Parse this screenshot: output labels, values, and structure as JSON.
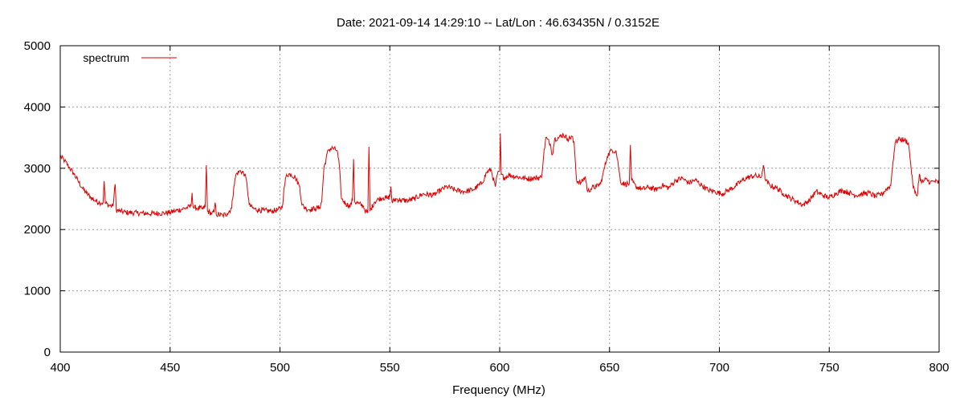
{
  "chart_data": {
    "type": "line",
    "title": "Date: 2021-09-14 14:29:10  --  Lat/Lon : 46.63435N / 0.3152E",
    "xlabel": "Frequency (MHz)",
    "ylabel": "",
    "xlim": [
      400,
      800
    ],
    "ylim": [
      0,
      5000
    ],
    "x_ticks": [
      400,
      450,
      500,
      550,
      600,
      650,
      700,
      750,
      800
    ],
    "y_ticks": [
      0,
      1000,
      2000,
      3000,
      4000,
      5000
    ],
    "grid": true,
    "legend_position": "top-left",
    "series": [
      {
        "name": "spectrum",
        "color": "#e00000",
        "points": [
          [
            400,
            3200
          ],
          [
            402,
            3120
          ],
          [
            404,
            3020
          ],
          [
            406,
            2920
          ],
          [
            408,
            2800
          ],
          [
            410,
            2680
          ],
          [
            412,
            2590
          ],
          [
            414,
            2520
          ],
          [
            416,
            2470
          ],
          [
            418,
            2440
          ],
          [
            419.5,
            2440
          ],
          [
            420,
            2790
          ],
          [
            420.5,
            2430
          ],
          [
            422,
            2400
          ],
          [
            424,
            2380
          ],
          [
            425,
            2740
          ],
          [
            425.5,
            2320
          ],
          [
            427,
            2300
          ],
          [
            430,
            2280
          ],
          [
            435,
            2270
          ],
          [
            440,
            2260
          ],
          [
            445,
            2265
          ],
          [
            448,
            2270
          ],
          [
            450,
            2280
          ],
          [
            452,
            2300
          ],
          [
            455,
            2330
          ],
          [
            458,
            2360
          ],
          [
            459.5,
            2380
          ],
          [
            460,
            2600
          ],
          [
            460.5,
            2360
          ],
          [
            462,
            2350
          ],
          [
            465,
            2340
          ],
          [
            466,
            2380
          ],
          [
            466.5,
            3050
          ],
          [
            467,
            2300
          ],
          [
            469,
            2260
          ],
          [
            470,
            2280
          ],
          [
            470.5,
            2440
          ],
          [
            471,
            2250
          ],
          [
            474,
            2230
          ],
          [
            476,
            2260
          ],
          [
            478,
            2350
          ],
          [
            479,
            2700
          ],
          [
            480,
            2900
          ],
          [
            482,
            2960
          ],
          [
            484,
            2900
          ],
          [
            485,
            2740
          ],
          [
            486,
            2400
          ],
          [
            488,
            2340
          ],
          [
            490,
            2320
          ],
          [
            493,
            2310
          ],
          [
            496,
            2300
          ],
          [
            499,
            2320
          ],
          [
            501,
            2360
          ],
          [
            502,
            2700
          ],
          [
            503,
            2900
          ],
          [
            505,
            2900
          ],
          [
            507,
            2850
          ],
          [
            509,
            2700
          ],
          [
            510,
            2400
          ],
          [
            512,
            2340
          ],
          [
            514,
            2330
          ],
          [
            516,
            2340
          ],
          [
            518,
            2360
          ],
          [
            519,
            2450
          ],
          [
            520,
            3000
          ],
          [
            522,
            3300
          ],
          [
            524,
            3330
          ],
          [
            526,
            3290
          ],
          [
            527,
            3050
          ],
          [
            528,
            2500
          ],
          [
            530,
            2420
          ],
          [
            532,
            2380
          ],
          [
            533,
            2480
          ],
          [
            533.5,
            3150
          ],
          [
            534,
            2450
          ],
          [
            536,
            2420
          ],
          [
            538,
            2380
          ],
          [
            539,
            2300
          ],
          [
            540,
            2270
          ],
          [
            540.5,
            3350
          ],
          [
            541,
            2300
          ],
          [
            543,
            2450
          ],
          [
            545,
            2500
          ],
          [
            547,
            2520
          ],
          [
            549,
            2510
          ],
          [
            550,
            2540
          ],
          [
            550.5,
            2700
          ],
          [
            551,
            2450
          ],
          [
            553,
            2500
          ],
          [
            555,
            2480
          ],
          [
            558,
            2470
          ],
          [
            561,
            2500
          ],
          [
            565,
            2580
          ],
          [
            570,
            2560
          ],
          [
            573,
            2640
          ],
          [
            576,
            2700
          ],
          [
            580,
            2640
          ],
          [
            584,
            2620
          ],
          [
            588,
            2650
          ],
          [
            592,
            2760
          ],
          [
            594,
            2930
          ],
          [
            596,
            2980
          ],
          [
            598,
            2700
          ],
          [
            599,
            2900
          ],
          [
            600,
            2960
          ],
          [
            600.3,
            3570
          ],
          [
            600.7,
            2900
          ],
          [
            602,
            2840
          ],
          [
            604,
            2890
          ],
          [
            608,
            2860
          ],
          [
            612,
            2830
          ],
          [
            616,
            2840
          ],
          [
            619,
            2850
          ],
          [
            620,
            3200
          ],
          [
            621,
            3500
          ],
          [
            623,
            3400
          ],
          [
            624,
            3220
          ],
          [
            625,
            3480
          ],
          [
            627,
            3500
          ],
          [
            629,
            3550
          ],
          [
            631,
            3480
          ],
          [
            633,
            3520
          ],
          [
            634,
            3350
          ],
          [
            635,
            2800
          ],
          [
            637,
            2760
          ],
          [
            639,
            2860
          ],
          [
            640,
            2620
          ],
          [
            642,
            2680
          ],
          [
            644,
            2700
          ],
          [
            646,
            2750
          ],
          [
            647,
            2900
          ],
          [
            649,
            3200
          ],
          [
            651,
            3300
          ],
          [
            653,
            3280
          ],
          [
            654,
            3050
          ],
          [
            655,
            2780
          ],
          [
            657,
            2740
          ],
          [
            659,
            2750
          ],
          [
            659.5,
            3380
          ],
          [
            660,
            2800
          ],
          [
            662,
            2700
          ],
          [
            665,
            2660
          ],
          [
            668,
            2690
          ],
          [
            671,
            2650
          ],
          [
            674,
            2720
          ],
          [
            677,
            2680
          ],
          [
            680,
            2800
          ],
          [
            683,
            2840
          ],
          [
            686,
            2760
          ],
          [
            689,
            2810
          ],
          [
            692,
            2720
          ],
          [
            695,
            2640
          ],
          [
            698,
            2620
          ],
          [
            701,
            2580
          ],
          [
            704,
            2640
          ],
          [
            707,
            2700
          ],
          [
            710,
            2790
          ],
          [
            713,
            2850
          ],
          [
            716,
            2880
          ],
          [
            719,
            2850
          ],
          [
            720,
            3050
          ],
          [
            721,
            2800
          ],
          [
            723,
            2720
          ],
          [
            726,
            2680
          ],
          [
            729,
            2590
          ],
          [
            732,
            2520
          ],
          [
            735,
            2460
          ],
          [
            738,
            2400
          ],
          [
            741,
            2480
          ],
          [
            744,
            2620
          ],
          [
            747,
            2560
          ],
          [
            750,
            2520
          ],
          [
            753,
            2590
          ],
          [
            756,
            2640
          ],
          [
            759,
            2600
          ],
          [
            762,
            2560
          ],
          [
            765,
            2580
          ],
          [
            768,
            2600
          ],
          [
            771,
            2540
          ],
          [
            774,
            2580
          ],
          [
            776,
            2660
          ],
          [
            778,
            2720
          ],
          [
            779,
            3100
          ],
          [
            780,
            3420
          ],
          [
            782,
            3480
          ],
          [
            784,
            3460
          ],
          [
            786,
            3420
          ],
          [
            787,
            3100
          ],
          [
            788,
            2750
          ],
          [
            789,
            2600
          ],
          [
            790,
            2550
          ],
          [
            791,
            2900
          ],
          [
            792,
            2760
          ],
          [
            794,
            2820
          ],
          [
            796,
            2770
          ],
          [
            798,
            2790
          ],
          [
            800,
            2760
          ]
        ]
      }
    ]
  }
}
